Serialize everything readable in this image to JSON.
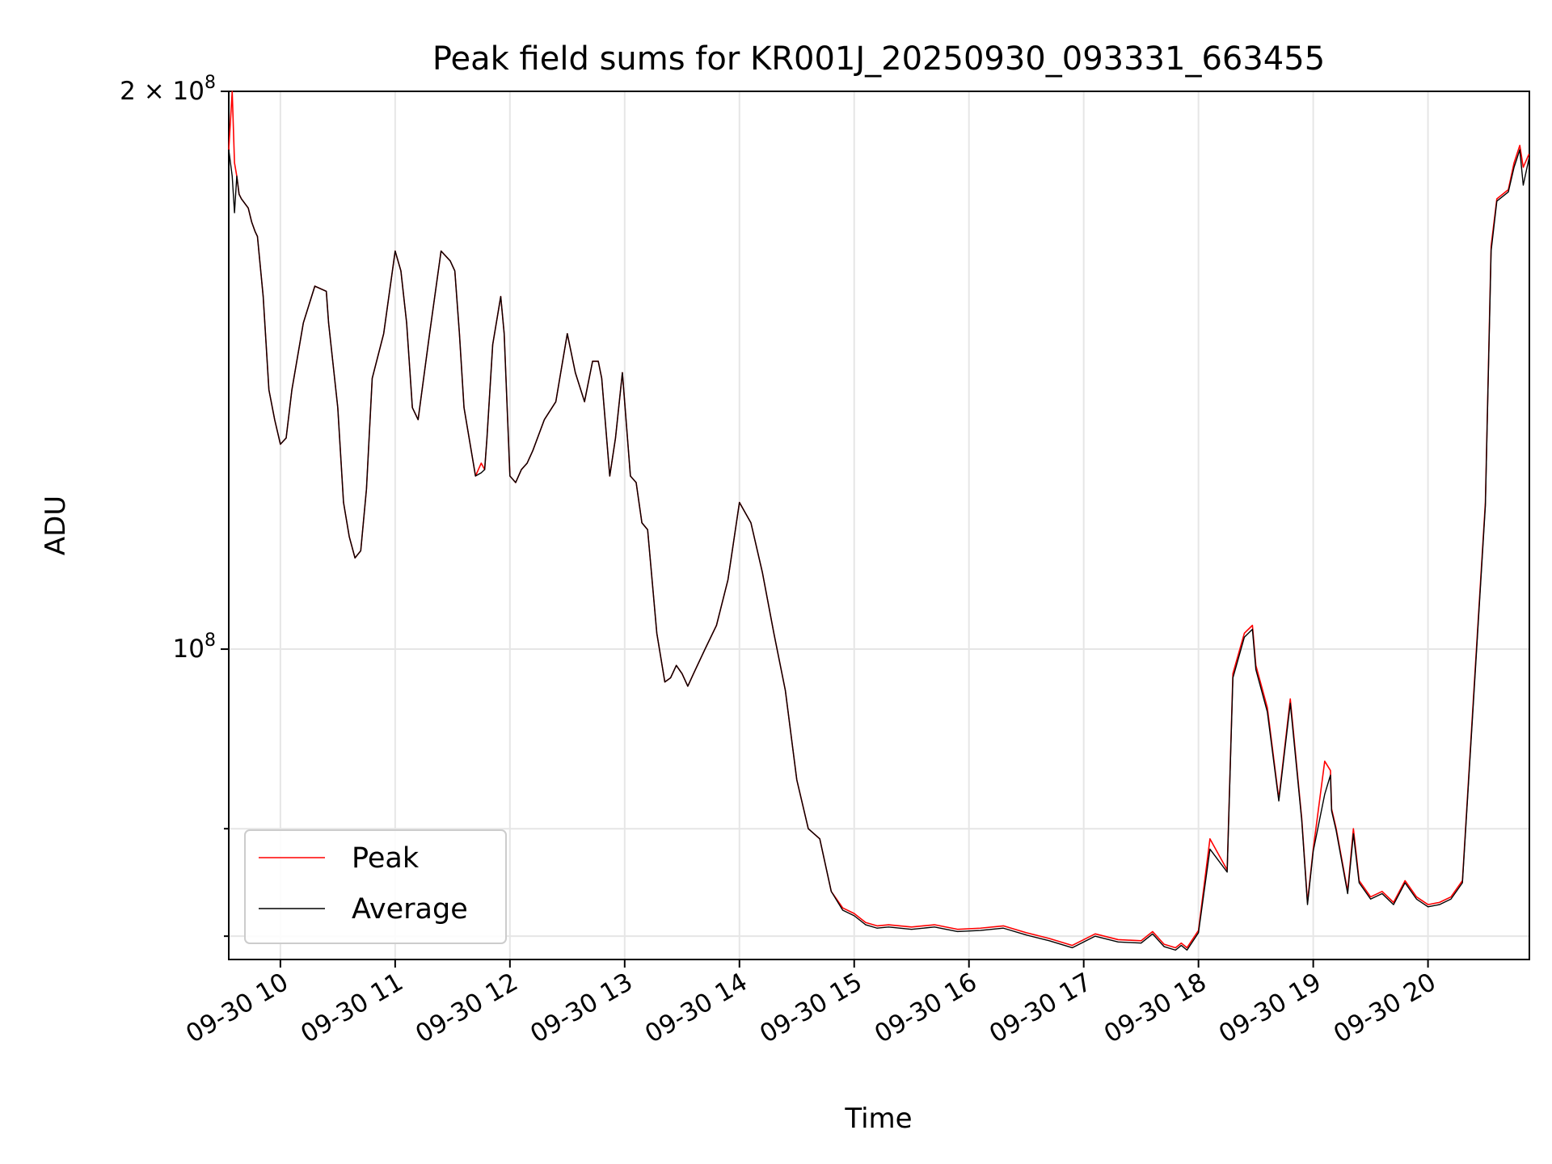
{
  "chart_data": {
    "type": "line",
    "title": "Peak field sums for KR001J_20250930_093331_663455",
    "xlabel": "Time",
    "ylabel": "ADU",
    "y_scale": "log",
    "xlim": [
      "2025-09-30 09:33",
      "2025-09-30 20:53"
    ],
    "ylim": [
      68000000,
      200000000
    ],
    "grid": true,
    "legend_position": "lower-left",
    "x_ticks": [
      "09-30 10",
      "09-30 11",
      "09-30 12",
      "09-30 13",
      "09-30 14",
      "09-30 15",
      "09-30 16",
      "09-30 17",
      "09-30 18",
      "09-30 19",
      "09-30 20"
    ],
    "x_tick_hours": [
      10,
      11,
      12,
      13,
      14,
      15,
      16,
      17,
      18,
      19,
      20
    ],
    "y_tick_labels": [
      {
        "value": 100000000,
        "base": "10",
        "exp": "8",
        "prefix": ""
      },
      {
        "value": 200000000,
        "base": "10",
        "exp": "8",
        "prefix": "2 × "
      }
    ],
    "y_minor_ticks": [
      70000000,
      80000000
    ],
    "series": [
      {
        "name": "Peak",
        "color": "#ff0000",
        "x": [
          9.55,
          9.58,
          9.6,
          9.62,
          9.64,
          9.66,
          9.72,
          9.75,
          9.78,
          9.8,
          9.85,
          9.9,
          9.95,
          10,
          10.05,
          10.1,
          10.2,
          10.3,
          10.4,
          10.42,
          10.5,
          10.55,
          10.6,
          10.65,
          10.7,
          10.75,
          10.8,
          10.9,
          11,
          11.05,
          11.1,
          11.15,
          11.2,
          11.3,
          11.4,
          11.48,
          11.52,
          11.56,
          11.6,
          11.7,
          11.75,
          11.78,
          11.8,
          11.85,
          11.92,
          11.95,
          12,
          12.05,
          12.1,
          12.15,
          12.2,
          12.3,
          12.4,
          12.5,
          12.57,
          12.65,
          12.72,
          12.77,
          12.8,
          12.87,
          12.92,
          12.98,
          13.05,
          13.1,
          13.15,
          13.2,
          13.28,
          13.35,
          13.4,
          13.45,
          13.5,
          13.55,
          13.6,
          13.7,
          13.8,
          13.9,
          14,
          14.1,
          14.2,
          14.3,
          14.4,
          14.5,
          14.6,
          14.7,
          14.8,
          14.9,
          15,
          15.1,
          15.2,
          15.3,
          15.5,
          15.7,
          15.9,
          16.1,
          16.3,
          16.5,
          16.7,
          16.9,
          17.1,
          17.3,
          17.5,
          17.6,
          17.7,
          17.8,
          17.85,
          17.9,
          18,
          18.1,
          18.25,
          18.3,
          18.4,
          18.47,
          18.5,
          18.6,
          18.7,
          18.8,
          18.9,
          18.95,
          19,
          19.1,
          19.15,
          19.16,
          19.2,
          19.3,
          19.35,
          19.4,
          19.5,
          19.6,
          19.7,
          19.8,
          19.9,
          20,
          20.1,
          20.2,
          20.3,
          20.4,
          20.5,
          20.55,
          20.6,
          20.7,
          20.75,
          20.8,
          20.83,
          20.88
        ],
        "y": [
          186000000,
          200000000,
          183000000,
          180000000,
          176000000,
          175000000,
          173000000,
          170000000,
          168000000,
          167000000,
          155000000,
          138000000,
          133000000,
          129000000,
          130000000,
          138000000,
          150000000,
          157000000,
          156000000,
          150000000,
          135000000,
          120000000,
          115000000,
          112000000,
          113000000,
          122000000,
          140000000,
          148000000,
          164000000,
          160000000,
          150000000,
          135000000,
          133000000,
          148000000,
          164000000,
          162000000,
          160000000,
          148000000,
          135000000,
          124000000,
          126000000,
          125000000,
          130000000,
          146000000,
          155000000,
          148000000,
          124000000,
          123000000,
          125000000,
          126000000,
          128000000,
          133000000,
          136000000,
          148000000,
          141000000,
          136000000,
          143000000,
          143000000,
          140000000,
          124000000,
          130000000,
          141000000,
          124000000,
          123000000,
          117000000,
          116000000,
          102000000,
          96000000,
          96500000,
          98000000,
          97000000,
          95500000,
          97000000,
          100000000,
          103000000,
          109000000,
          120000000,
          117000000,
          110000000,
          102000000,
          95000000,
          85000000,
          80000000,
          79000000,
          74000000,
          72500000,
          72000000,
          71200000,
          70900000,
          71000000,
          70800000,
          71000000,
          70600000,
          70700000,
          70900000,
          70300000,
          69800000,
          69200000,
          70200000,
          69700000,
          69600000,
          70400000,
          69300000,
          69000000,
          69400000,
          69000000,
          70500000,
          79000000,
          76000000,
          97000000,
          102000000,
          103000000,
          98000000,
          93000000,
          83000000,
          94000000,
          81000000,
          73000000,
          78000000,
          87000000,
          86000000,
          82000000,
          80000000,
          74000000,
          80000000,
          75000000,
          73500000,
          74000000,
          73000000,
          75000000,
          73500000,
          72800000,
          73000000,
          73500000,
          75000000,
          95000000,
          120000000,
          165000000,
          175000000,
          177000000,
          183000000,
          187000000,
          182000000,
          185000000
        ]
      },
      {
        "name": "Average",
        "color": "#000000",
        "x": [
          9.55,
          9.58,
          9.6,
          9.62,
          9.64,
          9.66,
          9.72,
          9.75,
          9.78,
          9.8,
          9.85,
          9.9,
          9.95,
          10,
          10.05,
          10.1,
          10.2,
          10.3,
          10.4,
          10.42,
          10.5,
          10.55,
          10.6,
          10.65,
          10.7,
          10.75,
          10.8,
          10.9,
          11,
          11.05,
          11.1,
          11.15,
          11.2,
          11.3,
          11.4,
          11.48,
          11.52,
          11.56,
          11.6,
          11.7,
          11.75,
          11.78,
          11.8,
          11.85,
          11.92,
          11.95,
          12,
          12.05,
          12.1,
          12.15,
          12.2,
          12.3,
          12.4,
          12.5,
          12.57,
          12.65,
          12.72,
          12.77,
          12.8,
          12.87,
          12.92,
          12.98,
          13.05,
          13.1,
          13.15,
          13.2,
          13.28,
          13.35,
          13.4,
          13.45,
          13.5,
          13.55,
          13.6,
          13.7,
          13.8,
          13.9,
          14,
          14.1,
          14.2,
          14.3,
          14.4,
          14.5,
          14.6,
          14.7,
          14.8,
          14.9,
          15,
          15.1,
          15.2,
          15.3,
          15.5,
          15.7,
          15.9,
          16.1,
          16.3,
          16.5,
          16.7,
          16.9,
          17.1,
          17.3,
          17.5,
          17.6,
          17.7,
          17.8,
          17.85,
          17.9,
          18,
          18.1,
          18.25,
          18.3,
          18.4,
          18.47,
          18.5,
          18.6,
          18.7,
          18.8,
          18.9,
          18.95,
          19,
          19.1,
          19.15,
          19.16,
          19.2,
          19.3,
          19.35,
          19.4,
          19.5,
          19.6,
          19.7,
          19.8,
          19.9,
          20,
          20.1,
          20.2,
          20.3,
          20.4,
          20.5,
          20.55,
          20.6,
          20.7,
          20.75,
          20.8,
          20.83,
          20.88
        ],
        "y": [
          186000000,
          180000000,
          172000000,
          180000000,
          176000000,
          175000000,
          173000000,
          170000000,
          168000000,
          167000000,
          155000000,
          138000000,
          133000000,
          129000000,
          130000000,
          138000000,
          150000000,
          157000000,
          156000000,
          150000000,
          135000000,
          120000000,
          115000000,
          112000000,
          113000000,
          122000000,
          140000000,
          148000000,
          164000000,
          160000000,
          150000000,
          135000000,
          133000000,
          148000000,
          164000000,
          162000000,
          160000000,
          148000000,
          135000000,
          124000000,
          124500000,
          125000000,
          130000000,
          146000000,
          155000000,
          148000000,
          124000000,
          123000000,
          125000000,
          126000000,
          128000000,
          133000000,
          136000000,
          148000000,
          141000000,
          136000000,
          143000000,
          143000000,
          140000000,
          124000000,
          130000000,
          141000000,
          124000000,
          123000000,
          117000000,
          116000000,
          102000000,
          96000000,
          96500000,
          98000000,
          97000000,
          95500000,
          97000000,
          100000000,
          103000000,
          109000000,
          120000000,
          117000000,
          110000000,
          102000000,
          95000000,
          85000000,
          80000000,
          79000000,
          74000000,
          72300000,
          71800000,
          71000000,
          70700000,
          70800000,
          70600000,
          70800000,
          70400000,
          70500000,
          70700000,
          70100000,
          69600000,
          69000000,
          70000000,
          69500000,
          69400000,
          70200000,
          69100000,
          68800000,
          69200000,
          68800000,
          70300000,
          78000000,
          75800000,
          96500000,
          101500000,
          102500000,
          97500000,
          92500000,
          82800000,
          93500000,
          80800000,
          72800000,
          77800000,
          83500000,
          85500000,
          81800000,
          79800000,
          73800000,
          79500000,
          74800000,
          73300000,
          73800000,
          72800000,
          74800000,
          73300000,
          72600000,
          72800000,
          73300000,
          74800000,
          94500000,
          119500000,
          164000000,
          174500000,
          176500000,
          182000000,
          186000000,
          178000000,
          184000000
        ]
      }
    ]
  }
}
